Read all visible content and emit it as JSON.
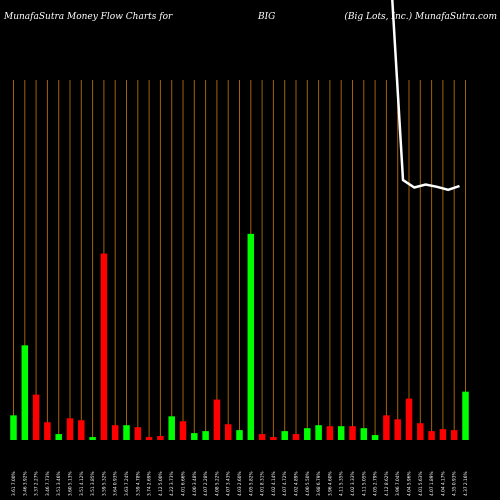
{
  "header": {
    "title_left": "MunafaSutra  Money Flow  Charts for",
    "ticker": "BIG",
    "title_right": "(Big Lots,  Inc.) MunafaSutra.com"
  },
  "colors": {
    "background": "#000000",
    "grid": "#a0620a",
    "up": "#00ff00",
    "down": "#ff0000",
    "line": "#ffffff",
    "text": "#ffffff"
  },
  "chart_data": {
    "type": "bar",
    "title": "MunafaSutra  Money Flow  Charts for BIG (Big Lots,  Inc.) MunafaSutra.com",
    "grid": "vertical",
    "categories": [
      "3.61 7.00%",
      "3.46 3.92%",
      "3.37 2.27%",
      "3.46 7.73%",
      "3.51 3.46%",
      "3.60 5.13%",
      "3.51 4.12%",
      "3.51 3.85%",
      "3.59 5.32%",
      "3.64 0.93%",
      "3.63 7.24%",
      "3.59 4.78%",
      "3.74 2.69%",
      "4.12 5.00%",
      "4.22 3.73%",
      "4.01 6.66%",
      "4.00 3.48%",
      "4.07 2.28%",
      "4.08 5.22%",
      "4.07 3.43%",
      "4.03 2.60%",
      "4.05 5.82%",
      "4.01 8.31%",
      "4.02 4.14%",
      "4.07 4.72%",
      "4.02 4.89%",
      "4.00 5.50%",
      "3.98 6.79%",
      "3.96 4.60%",
      "4.11 5.35%",
      "4.02 3.33%",
      "4.11 5.05%",
      "4.05 2.79%",
      "4.12 8.62%",
      "3.96 7.04%",
      "4.04 5.96%",
      "4.01 5.63%",
      "4.07 1.89%",
      "4.04 4.17%",
      "4.35 0.93%",
      "4.37 2.16%"
    ],
    "bar_direction": [
      "up",
      "up",
      "down",
      "down",
      "up",
      "down",
      "down",
      "up",
      "down",
      "down",
      "up",
      "down",
      "down",
      "down",
      "up",
      "down",
      "up",
      "up",
      "down",
      "down",
      "up",
      "up",
      "down",
      "down",
      "up",
      "down",
      "up",
      "up",
      "down",
      "up",
      "down",
      "up",
      "up",
      "down",
      "down",
      "down",
      "down",
      "down",
      "down",
      "down",
      "up"
    ],
    "values": [
      25,
      96,
      46,
      18,
      6,
      22,
      20,
      3,
      189,
      15,
      15,
      13,
      3,
      4,
      24,
      19,
      7,
      9,
      41,
      16,
      10,
      209,
      6,
      3,
      9,
      6,
      12,
      15,
      14,
      14,
      14,
      12,
      5,
      25,
      21,
      42,
      17,
      9,
      11,
      10,
      49
    ],
    "line": [
      null,
      null,
      null,
      null,
      null,
      null,
      null,
      null,
      null,
      null,
      null,
      null,
      null,
      null,
      null,
      null,
      null,
      null,
      null,
      null,
      null,
      null,
      null,
      null,
      null,
      null,
      null,
      null,
      null,
      null,
      null,
      null,
      null,
      null,
      1000,
      590,
      580,
      584,
      581,
      577,
      582
    ],
    "ylim": [
      0,
      365
    ],
    "line_ylim": [
      550,
      650
    ]
  }
}
